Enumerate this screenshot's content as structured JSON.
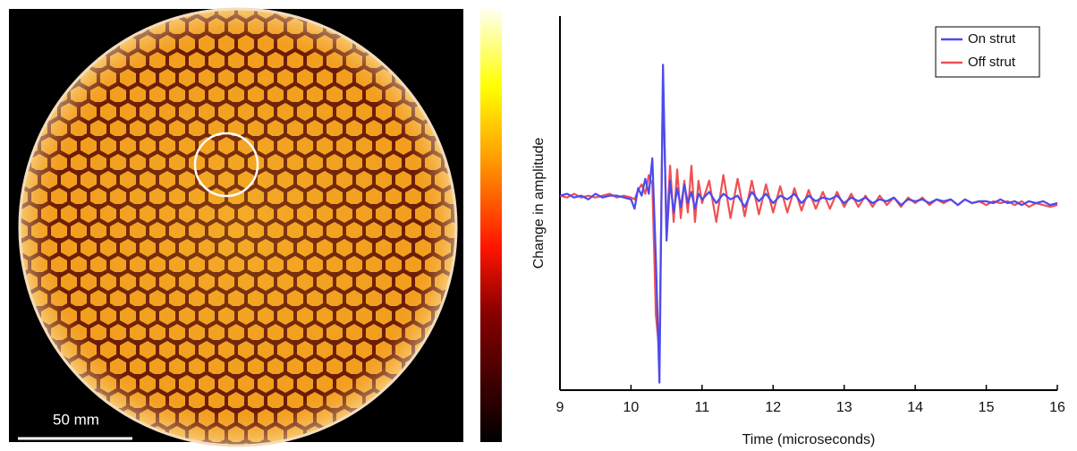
{
  "image": {
    "scale_bar_label": "50 mm"
  },
  "chart_data": {
    "type": "line",
    "xlabel": "Time (microseconds)",
    "ylabel": "Change in amplitude",
    "x": [
      9.0,
      9.1,
      9.2,
      9.3,
      9.4,
      9.5,
      9.6,
      9.7,
      9.8,
      9.9,
      10.0,
      10.05,
      10.1,
      10.15,
      10.2,
      10.25,
      10.3,
      10.35,
      10.4,
      10.45,
      10.5,
      10.55,
      10.6,
      10.65,
      10.7,
      10.75,
      10.8,
      10.85,
      10.9,
      10.95,
      11.0,
      11.1,
      11.2,
      11.3,
      11.4,
      11.5,
      11.6,
      11.7,
      11.8,
      11.9,
      12.0,
      12.1,
      12.2,
      12.3,
      12.4,
      12.5,
      12.6,
      12.7,
      12.8,
      12.9,
      13.0,
      13.1,
      13.2,
      13.3,
      13.4,
      13.5,
      13.6,
      13.7,
      13.8,
      13.9,
      14.0,
      14.1,
      14.2,
      14.3,
      14.4,
      14.5,
      14.6,
      14.7,
      14.8,
      14.9,
      15.0,
      15.1,
      15.2,
      15.3,
      15.4,
      15.5,
      15.6,
      15.7,
      15.8,
      15.9,
      16.0
    ],
    "series": [
      {
        "name": "On strut",
        "color": "#4b4bf0",
        "values": [
          0.04,
          0.05,
          0.03,
          0.04,
          0.02,
          0.05,
          0.03,
          0.04,
          0.04,
          0.03,
          0.02,
          -0.03,
          0.08,
          0.04,
          0.13,
          0.05,
          0.24,
          -0.3,
          -0.96,
          0.74,
          -0.2,
          0.12,
          -0.05,
          0.08,
          -0.02,
          0.1,
          0.0,
          0.06,
          -0.03,
          0.05,
          0.02,
          0.06,
          0.0,
          0.05,
          0.02,
          0.04,
          -0.02,
          0.06,
          0.01,
          0.05,
          0.0,
          0.04,
          0.02,
          0.05,
          0.0,
          0.04,
          0.01,
          0.03,
          0.02,
          0.04,
          0.0,
          0.03,
          0.01,
          0.03,
          0.0,
          0.02,
          0.01,
          0.03,
          -0.01,
          0.02,
          0.01,
          0.02,
          0.0,
          0.02,
          0.01,
          0.02,
          -0.01,
          0.02,
          0.0,
          0.01,
          0.01,
          0.0,
          0.02,
          0.0,
          0.01,
          -0.01,
          0.01,
          0.0,
          0.01,
          -0.01,
          0.0
        ]
      },
      {
        "name": "Off strut",
        "color": "#f05050",
        "values": [
          0.04,
          0.03,
          0.05,
          0.03,
          0.04,
          0.03,
          0.04,
          0.05,
          0.03,
          0.04,
          0.03,
          0.02,
          0.07,
          0.1,
          0.05,
          0.15,
          0.1,
          -0.6,
          -0.8,
          0.67,
          -0.15,
          0.2,
          -0.1,
          0.18,
          -0.08,
          0.12,
          -0.05,
          0.2,
          -0.1,
          0.12,
          0.0,
          0.12,
          -0.1,
          0.15,
          -0.08,
          0.13,
          -0.07,
          0.12,
          -0.06,
          0.1,
          -0.05,
          0.09,
          -0.05,
          0.08,
          -0.04,
          0.07,
          -0.03,
          0.06,
          -0.03,
          0.06,
          -0.02,
          0.05,
          -0.02,
          0.04,
          -0.02,
          0.04,
          -0.01,
          0.03,
          -0.02,
          0.03,
          0.0,
          0.03,
          -0.01,
          0.02,
          0.0,
          0.02,
          -0.01,
          0.02,
          0.0,
          0.01,
          -0.01,
          0.01,
          0.0,
          0.01,
          -0.01,
          0.01,
          -0.02,
          0.0,
          -0.01,
          -0.02,
          -0.01
        ]
      }
    ],
    "xlim": [
      9,
      16
    ],
    "xticks": [
      9,
      10,
      11,
      12,
      13,
      14,
      15,
      16
    ],
    "ylim": [
      -1,
      1
    ],
    "legend": "upper right"
  }
}
